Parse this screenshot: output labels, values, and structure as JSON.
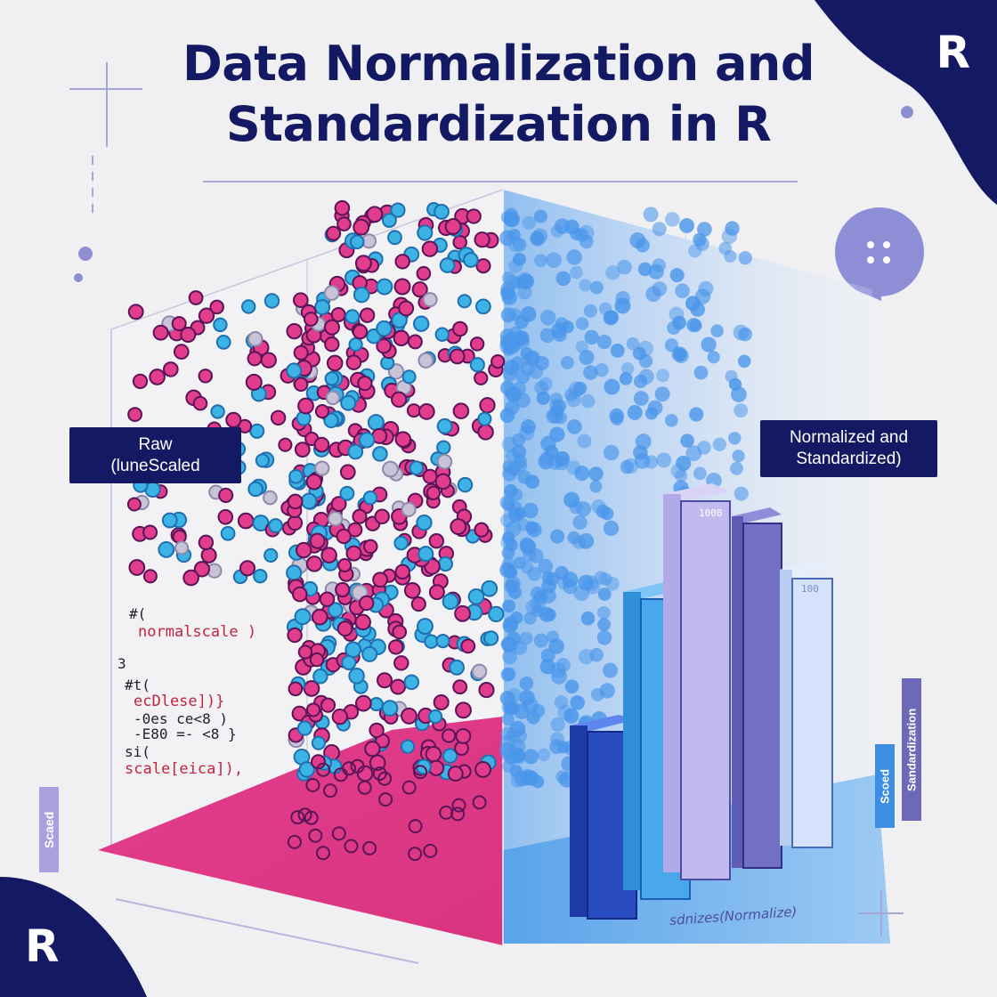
{
  "title": {
    "line1": "Data Normalization and",
    "line2": "Standardization in R"
  },
  "logos": {
    "top_right": "R",
    "bottom_left": "R"
  },
  "labels": {
    "raw_line1": "Raw",
    "raw_line2": "(luneScaled",
    "normalized_line1": "Normalized and",
    "normalized_line2": "Standardized)"
  },
  "code_snippets": {
    "line1": "#(",
    "line2": "normalscale )",
    "line3": "3",
    "line4": "#t(",
    "line5": "ecDlese])}",
    "line6": "-0es ce<8 )",
    "line7": "-E80 =- <8 }",
    "line8": "si(",
    "line9": "scale[eica]),"
  },
  "side_tags": {
    "left": "Scaed",
    "right_blue": "Scoed",
    "right_purple": "Sandardization"
  },
  "bar_labels": {
    "tall": "1008",
    "right": "100"
  },
  "bottom_caption": "sdnizes(Normalize)",
  "colors": {
    "navy": "#131a63",
    "magenta": "#e23c8c",
    "cyan": "#3cb3e4",
    "blue": "#4a96ea",
    "purple": "#7775c8",
    "lavender": "#c5bfec",
    "light_blue": "#cfe0fb"
  },
  "icons": [
    "chat-bubble-icon",
    "sparkle-icon",
    "plus-icon"
  ]
}
